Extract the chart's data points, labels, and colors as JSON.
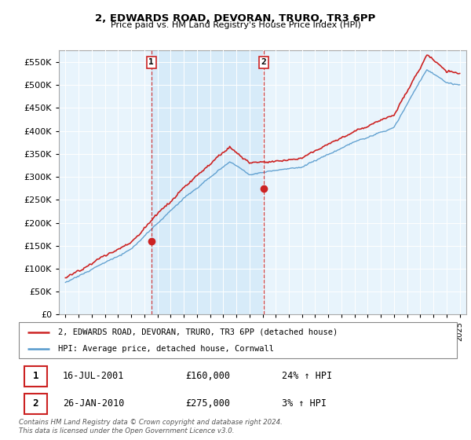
{
  "title": "2, EDWARDS ROAD, DEVORAN, TRURO, TR3 6PP",
  "subtitle": "Price paid vs. HM Land Registry's House Price Index (HPI)",
  "legend_line1": "2, EDWARDS ROAD, DEVORAN, TRURO, TR3 6PP (detached house)",
  "legend_line2": "HPI: Average price, detached house, Cornwall",
  "transaction1": {
    "label": "1",
    "date": "16-JUL-2001",
    "price": "£160,000",
    "hpi": "24% ↑ HPI"
  },
  "transaction2": {
    "label": "2",
    "date": "26-JAN-2010",
    "price": "£275,000",
    "hpi": "3% ↑ HPI"
  },
  "footer": "Contains HM Land Registry data © Crown copyright and database right 2024.\nThis data is licensed under the Open Government Licence v3.0.",
  "hpi_color": "#5599cc",
  "price_color": "#cc2222",
  "shade_color": "#cce0f0",
  "marker1_x": 2001.54,
  "marker2_x": 2010.07,
  "marker1_y": 160000,
  "marker2_y": 275000,
  "ylim": [
    0,
    575000
  ],
  "xlim": [
    1994.5,
    2025.5
  ],
  "yticks": [
    0,
    50000,
    100000,
    150000,
    200000,
    250000,
    300000,
    350000,
    400000,
    450000,
    500000,
    550000
  ],
  "xticks": [
    1995,
    1996,
    1997,
    1998,
    1999,
    2000,
    2001,
    2002,
    2003,
    2004,
    2005,
    2006,
    2007,
    2008,
    2009,
    2010,
    2011,
    2012,
    2013,
    2014,
    2015,
    2016,
    2017,
    2018,
    2019,
    2020,
    2021,
    2022,
    2023,
    2024,
    2025
  ]
}
